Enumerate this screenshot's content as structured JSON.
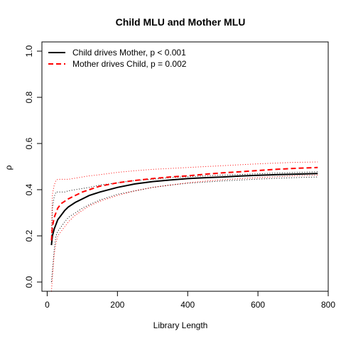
{
  "chart_data": {
    "type": "line",
    "title": "Child MLU and Mother MLU",
    "xlabel": "Library Length",
    "ylabel": "ρ",
    "xlim": [
      -15,
      800
    ],
    "ylim": [
      -0.04,
      1.04
    ],
    "xticks": [
      0,
      200,
      400,
      600,
      800
    ],
    "yticks": [
      0.0,
      0.2,
      0.4,
      0.6,
      0.8,
      1.0
    ],
    "xtick_labels": [
      "0",
      "200",
      "400",
      "600",
      "800"
    ],
    "ytick_labels": [
      "0.0",
      "0.2",
      "0.4",
      "0.6",
      "0.8",
      "1.0"
    ],
    "legend_position": "top-left",
    "x": [
      12,
      15,
      20,
      25,
      30,
      40,
      50,
      60,
      80,
      100,
      120,
      150,
      200,
      250,
      300,
      350,
      400,
      450,
      500,
      550,
      600,
      650,
      700,
      770
    ],
    "series": [
      {
        "name": "Child drives Mother, p < 0.001",
        "color": "#000000",
        "style": "solid",
        "values": [
          0.16,
          0.2,
          0.23,
          0.25,
          0.27,
          0.29,
          0.31,
          0.325,
          0.345,
          0.36,
          0.375,
          0.39,
          0.41,
          0.425,
          0.435,
          0.442,
          0.448,
          0.452,
          0.455,
          0.459,
          0.462,
          0.465,
          0.467,
          0.47
        ]
      },
      {
        "name": "Mother drives Child, p = 0.002",
        "color": "#ff0000",
        "style": "dashed",
        "values": [
          0.18,
          0.24,
          0.28,
          0.3,
          0.32,
          0.34,
          0.35,
          0.36,
          0.375,
          0.39,
          0.4,
          0.415,
          0.43,
          0.44,
          0.448,
          0.455,
          0.46,
          0.467,
          0.473,
          0.478,
          0.483,
          0.488,
          0.492,
          0.496
        ]
      }
    ],
    "bands": [
      {
        "color": "#000000",
        "bound": "upper",
        "values": [
          0.17,
          0.32,
          0.37,
          0.39,
          0.39,
          0.39,
          0.39,
          0.395,
          0.4,
          0.405,
          0.41,
          0.42,
          0.43,
          0.44,
          0.445,
          0.452,
          0.456,
          0.46,
          0.463,
          0.466,
          0.469,
          0.472,
          0.474,
          0.478
        ]
      },
      {
        "color": "#000000",
        "bound": "lower",
        "values": [
          0.0,
          0.05,
          0.14,
          0.2,
          0.22,
          0.24,
          0.26,
          0.28,
          0.3,
          0.32,
          0.335,
          0.355,
          0.38,
          0.395,
          0.41,
          0.42,
          0.428,
          0.433,
          0.438,
          0.442,
          0.446,
          0.449,
          0.452,
          0.455
        ]
      },
      {
        "color": "#ff0000",
        "bound": "upper",
        "values": [
          0.2,
          0.38,
          0.42,
          0.44,
          0.445,
          0.445,
          0.445,
          0.445,
          0.45,
          0.455,
          0.46,
          0.465,
          0.475,
          0.482,
          0.488,
          0.492,
          0.496,
          0.5,
          0.504,
          0.508,
          0.512,
          0.515,
          0.518,
          0.52
        ]
      },
      {
        "color": "#ff0000",
        "bound": "lower",
        "values": [
          -0.04,
          0.02,
          0.12,
          0.17,
          0.2,
          0.22,
          0.24,
          0.26,
          0.29,
          0.31,
          0.33,
          0.35,
          0.375,
          0.395,
          0.41,
          0.42,
          0.43,
          0.437,
          0.443,
          0.448,
          0.452,
          0.456,
          0.46,
          0.463
        ]
      }
    ]
  }
}
